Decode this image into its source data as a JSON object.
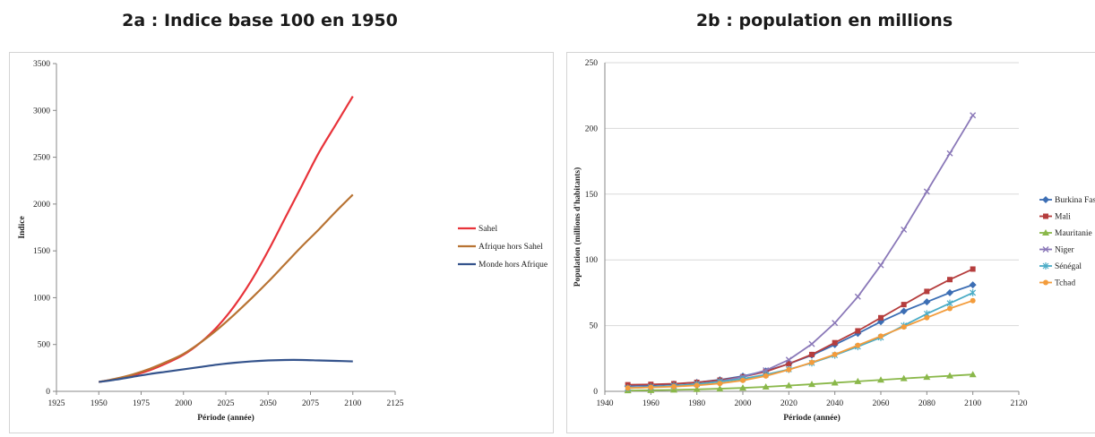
{
  "headings": {
    "a": "2a : Indice base 100 en 1950",
    "b": "2b : population en millions"
  },
  "chart_data": [
    {
      "type": "line",
      "title": "",
      "xlabel": "Période (année)",
      "ylabel": "Indice",
      "xlim": [
        1925,
        2125
      ],
      "ylim": [
        0,
        3500
      ],
      "xticks": [
        1925,
        1950,
        1975,
        2000,
        2025,
        2050,
        2075,
        2100,
        2125
      ],
      "yticks": [
        0,
        500,
        1000,
        1500,
        2000,
        2500,
        3000,
        3500
      ],
      "grid": false,
      "legend_position": "right",
      "series": [
        {
          "name": "Sahel",
          "color": "#e8333a",
          "x": [
            1950,
            1960,
            1970,
            1980,
            1990,
            2000,
            2010,
            2020,
            2030,
            2040,
            2050,
            2060,
            2070,
            2080,
            2090,
            2100
          ],
          "y": [
            100,
            130,
            170,
            225,
            300,
            390,
            520,
            690,
            910,
            1180,
            1500,
            1850,
            2200,
            2550,
            2850,
            3150
          ]
        },
        {
          "name": "Afrique hors Sahel",
          "color": "#b87333",
          "x": [
            1950,
            1960,
            1970,
            1980,
            1990,
            2000,
            2010,
            2020,
            2030,
            2040,
            2050,
            2060,
            2070,
            2080,
            2090,
            2100
          ],
          "y": [
            100,
            135,
            180,
            240,
            315,
            400,
            520,
            660,
            820,
            990,
            1170,
            1360,
            1550,
            1730,
            1920,
            2100
          ]
        },
        {
          "name": "Monde hors Afrique",
          "color": "#34538c",
          "x": [
            1950,
            1960,
            1970,
            1980,
            1990,
            2000,
            2010,
            2020,
            2030,
            2040,
            2050,
            2060,
            2070,
            2080,
            2090,
            2100
          ],
          "y": [
            100,
            125,
            155,
            185,
            210,
            235,
            260,
            285,
            305,
            320,
            330,
            335,
            335,
            330,
            325,
            320
          ]
        }
      ]
    },
    {
      "type": "line",
      "title": "",
      "xlabel": "Période (année)",
      "ylabel": "Population (millions d'habitants)",
      "xlim": [
        1940,
        2120
      ],
      "ylim": [
        0,
        250
      ],
      "xticks": [
        1940,
        1960,
        1980,
        2000,
        2020,
        2040,
        2060,
        2080,
        2100,
        2120
      ],
      "yticks": [
        0,
        50,
        100,
        150,
        200,
        250
      ],
      "grid": true,
      "legend_position": "right",
      "x": [
        1950,
        1960,
        1970,
        1980,
        1990,
        2000,
        2010,
        2020,
        2030,
        2040,
        2050,
        2060,
        2070,
        2080,
        2090,
        2100
      ],
      "series": [
        {
          "name": "Burkina Faso",
          "label_shown": "Burkina Fas",
          "color": "#3c6eb4",
          "marker": "diamond",
          "y": [
            4,
            4.5,
            5.5,
            6.8,
            8.8,
            11.6,
            15.5,
            20.9,
            27.5,
            35.5,
            44,
            53,
            61,
            68,
            75,
            81
          ]
        },
        {
          "name": "Mali",
          "color": "#b53d3d",
          "marker": "square",
          "y": [
            5,
            5.3,
            5.8,
            6.8,
            8.5,
            11,
            15,
            21,
            28,
            37,
            46,
            56,
            66,
            76,
            85,
            93
          ]
        },
        {
          "name": "Mauritanie",
          "color": "#8ab84a",
          "marker": "triangle",
          "y": [
            0.6,
            0.8,
            1.1,
            1.5,
            2,
            2.6,
            3.4,
            4.4,
            5.4,
            6.5,
            7.6,
            8.7,
            9.8,
            10.8,
            11.8,
            12.8
          ]
        },
        {
          "name": "Niger",
          "color": "#8a78b8",
          "marker": "x",
          "y": [
            2.5,
            3.2,
            4.1,
            5.5,
            7.6,
            11,
            16,
            24,
            36,
            52,
            72,
            96,
            123,
            152,
            181,
            210
          ]
        },
        {
          "name": "Sénégal",
          "color": "#4bacc6",
          "marker": "star",
          "y": [
            2.5,
            3.2,
            4.2,
            5.5,
            7.3,
            9.5,
            12.7,
            16.7,
            21.6,
            27.5,
            34,
            41,
            50,
            59,
            67,
            75
          ]
        },
        {
          "name": "Tchad",
          "color": "#f39c3c",
          "marker": "circle",
          "y": [
            2.5,
            3,
            3.6,
            4.5,
            6,
            8.3,
            11.7,
            16.4,
            22,
            28,
            35,
            42,
            49,
            56,
            63,
            69
          ]
        }
      ]
    }
  ]
}
